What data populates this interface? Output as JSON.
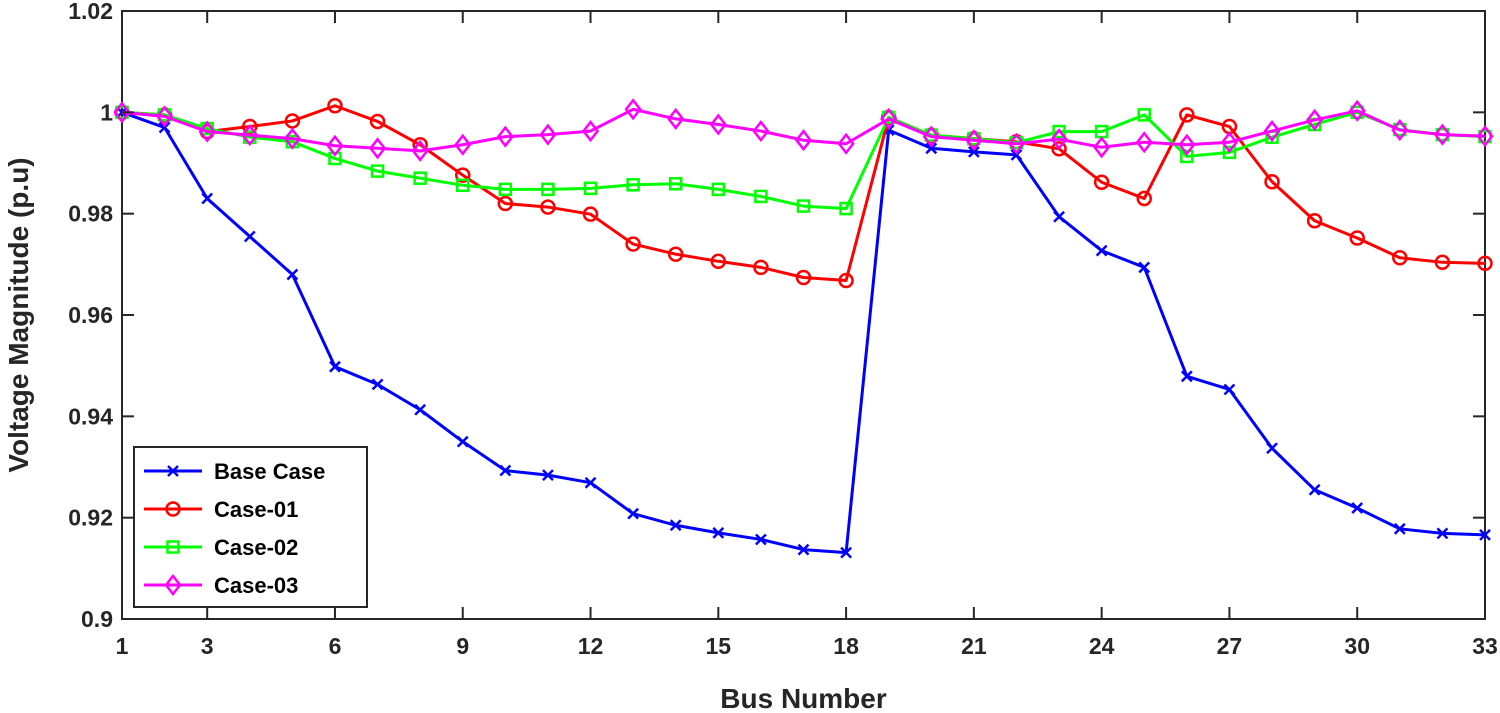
{
  "chart_data": {
    "type": "line",
    "title": "",
    "xlabel": "Bus Number",
    "ylabel": "Voltage Magnitude (p.u)",
    "xlim": [
      1,
      33
    ],
    "ylim": [
      0.9,
      1.02
    ],
    "xticks": [
      1,
      3,
      6,
      9,
      12,
      15,
      18,
      21,
      24,
      27,
      30,
      33
    ],
    "xtick_labels": [
      "1",
      "3",
      "6",
      "9",
      "12",
      "15",
      "18",
      "21",
      "24",
      "27",
      "30",
      "33"
    ],
    "yticks": [
      0.9,
      0.92,
      0.94,
      0.96,
      0.98,
      1.0,
      1.02
    ],
    "ytick_labels": [
      "0.9",
      "0.92",
      "0.94",
      "0.96",
      "0.98",
      "1",
      "1.02"
    ],
    "grid": false,
    "legend_position": "bottom-left",
    "x": [
      1,
      2,
      3,
      4,
      5,
      6,
      7,
      8,
      9,
      10,
      11,
      12,
      13,
      14,
      15,
      16,
      17,
      18,
      19,
      20,
      21,
      22,
      23,
      24,
      25,
      26,
      27,
      28,
      29,
      30,
      31,
      32,
      33
    ],
    "series": [
      {
        "name": "Base Case",
        "color": "#0000ff",
        "marker": "x",
        "values": [
          1.0,
          0.997,
          0.983,
          0.9755,
          0.968,
          0.9498,
          0.9463,
          0.9413,
          0.935,
          0.9293,
          0.9284,
          0.9269,
          0.9208,
          0.9185,
          0.917,
          0.9157,
          0.9137,
          0.9131,
          0.9965,
          0.9929,
          0.9922,
          0.9916,
          0.9794,
          0.9727,
          0.9694,
          0.9479,
          0.9453,
          0.9337,
          0.9255,
          0.9219,
          0.9178,
          0.9169,
          0.9166
        ]
      },
      {
        "name": "Case-01",
        "color": "#ff0000",
        "marker": "circle",
        "values": [
          1.0,
          0.9995,
          0.9962,
          0.9972,
          0.9983,
          1.0013,
          0.9982,
          0.9936,
          0.9876,
          0.982,
          0.9813,
          0.9799,
          0.974,
          0.972,
          0.9706,
          0.9694,
          0.9674,
          0.9668,
          0.999,
          0.9955,
          0.9948,
          0.9942,
          0.9928,
          0.9862,
          0.983,
          0.9995,
          0.9972,
          0.9863,
          0.9786,
          0.9752,
          0.9713,
          0.9704,
          0.9702
        ]
      },
      {
        "name": "Case-02",
        "color": "#00ff00",
        "marker": "square",
        "values": [
          1.0,
          0.9995,
          0.9968,
          0.9951,
          0.9942,
          0.9909,
          0.9884,
          0.987,
          0.9856,
          0.9848,
          0.9848,
          0.985,
          0.9857,
          0.9859,
          0.9848,
          0.9834,
          0.9815,
          0.981,
          0.999,
          0.9955,
          0.9948,
          0.994,
          0.9962,
          0.9962,
          0.9995,
          0.9913,
          0.9921,
          0.9951,
          0.9976,
          1.0,
          0.9966,
          0.9956,
          0.9952
        ]
      },
      {
        "name": "Case-03",
        "color": "#ff00ff",
        "marker": "diamond",
        "values": [
          1.0,
          0.9992,
          0.9962,
          0.9955,
          0.9948,
          0.9934,
          0.9929,
          0.9924,
          0.9936,
          0.9952,
          0.9956,
          0.9963,
          1.0006,
          0.9987,
          0.9976,
          0.9963,
          0.9945,
          0.9938,
          0.9987,
          0.9952,
          0.9945,
          0.9938,
          0.9947,
          0.9931,
          0.9941,
          0.9936,
          0.9941,
          0.9963,
          0.9985,
          1.0003,
          0.9965,
          0.9956,
          0.9953
        ]
      }
    ]
  }
}
